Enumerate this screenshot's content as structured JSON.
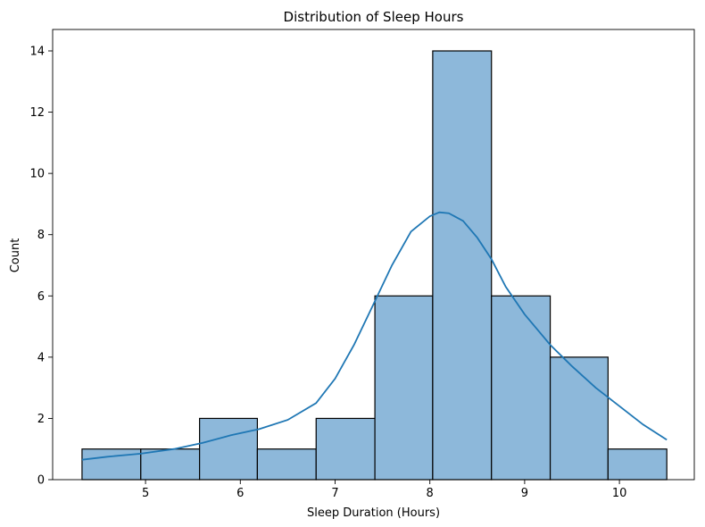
{
  "chart_data": {
    "type": "bar",
    "title": "Distribution of Sleep Hours",
    "xlabel": "Sleep Duration (Hours)",
    "ylabel": "Count",
    "xlim": [
      4.02,
      10.79
    ],
    "ylim": [
      0,
      14.7
    ],
    "xticks": [
      5,
      6,
      7,
      8,
      9,
      10
    ],
    "yticks": [
      0,
      2,
      4,
      6,
      8,
      10,
      12,
      14
    ],
    "grid": false,
    "bins": [
      {
        "x0": 4.33,
        "x1": 4.95,
        "count": 1
      },
      {
        "x0": 4.95,
        "x1": 5.57,
        "count": 1
      },
      {
        "x0": 5.57,
        "x1": 6.18,
        "count": 2
      },
      {
        "x0": 6.18,
        "x1": 6.8,
        "count": 1
      },
      {
        "x0": 6.8,
        "x1": 7.42,
        "count": 2
      },
      {
        "x0": 7.42,
        "x1": 8.03,
        "count": 6
      },
      {
        "x0": 8.03,
        "x1": 8.65,
        "count": 14
      },
      {
        "x0": 8.65,
        "x1": 9.27,
        "count": 6
      },
      {
        "x0": 9.27,
        "x1": 9.88,
        "count": 4
      },
      {
        "x0": 9.88,
        "x1": 10.5,
        "count": 1
      }
    ],
    "kde": {
      "x": [
        4.33,
        4.6,
        4.95,
        5.3,
        5.6,
        5.9,
        6.2,
        6.5,
        6.8,
        7.0,
        7.2,
        7.4,
        7.6,
        7.8,
        8.0,
        8.1,
        8.2,
        8.35,
        8.5,
        8.65,
        8.8,
        9.0,
        9.27,
        9.5,
        9.75,
        10.0,
        10.25,
        10.5
      ],
      "y": [
        0.65,
        0.75,
        0.85,
        1.0,
        1.2,
        1.45,
        1.65,
        1.95,
        2.5,
        3.3,
        4.4,
        5.7,
        7.0,
        8.1,
        8.6,
        8.73,
        8.7,
        8.45,
        7.9,
        7.2,
        6.3,
        5.4,
        4.4,
        3.7,
        3.0,
        2.4,
        1.8,
        1.3
      ]
    },
    "colors": {
      "bar_fill": "#8DB8DA",
      "bar_edge": "#000000",
      "kde_line": "#1F77B4"
    }
  }
}
